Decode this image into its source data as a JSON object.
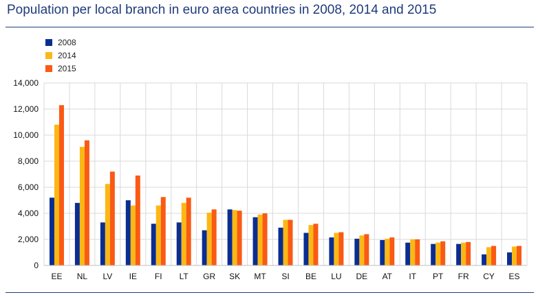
{
  "title": "Population per local branch in euro area countries in 2008, 2014 and 2015",
  "colors": {
    "2008": "#0a2d91",
    "2014": "#fbb814",
    "2015": "#fa5a14",
    "title": "#1f3b7a"
  },
  "chart_data": {
    "type": "bar",
    "title": "Population per local branch in euro area countries in 2008, 2014 and 2015",
    "xlabel": "",
    "ylabel": "",
    "ylim": [
      0,
      14000
    ],
    "yticks": [
      0,
      2000,
      4000,
      6000,
      8000,
      10000,
      12000,
      14000
    ],
    "ytick_labels": [
      "0",
      "2,000",
      "4,000",
      "6,000",
      "8,000",
      "10,000",
      "12,000",
      "14,000"
    ],
    "grid": true,
    "legend_position": "top-left",
    "categories": [
      "EE",
      "NL",
      "LV",
      "IE",
      "FI",
      "LT",
      "GR",
      "SK",
      "MT",
      "SI",
      "BE",
      "LU",
      "DE",
      "AT",
      "IT",
      "PT",
      "FR",
      "CY",
      "ES"
    ],
    "series": [
      {
        "name": "2008",
        "color": "#0a2d91",
        "values": [
          5200,
          4800,
          3300,
          5000,
          3200,
          3300,
          2700,
          4300,
          3700,
          2900,
          2500,
          2150,
          2050,
          1950,
          1750,
          1650,
          1650,
          850,
          1000
        ]
      },
      {
        "name": "2014",
        "color": "#fbb814",
        "values": [
          10800,
          9100,
          6250,
          4600,
          4600,
          4800,
          4050,
          4250,
          3900,
          3500,
          3100,
          2500,
          2300,
          2050,
          2000,
          1750,
          1750,
          1400,
          1450
        ]
      },
      {
        "name": "2015",
        "color": "#fa5a14",
        "values": [
          12300,
          9600,
          7200,
          6900,
          5250,
          5200,
          4300,
          4200,
          4000,
          3500,
          3200,
          2550,
          2400,
          2150,
          2000,
          1850,
          1800,
          1500,
          1500
        ]
      }
    ]
  }
}
